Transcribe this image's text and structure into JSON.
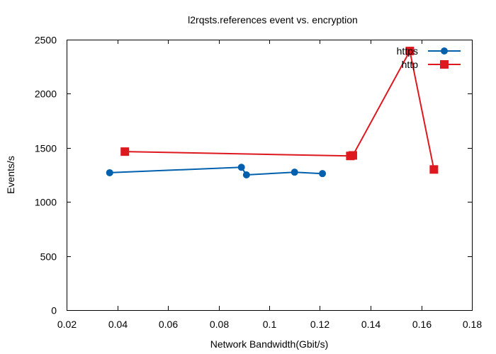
{
  "chart_data": {
    "type": "line",
    "title": "l2rqsts.references event vs. encryption",
    "xlabel": "Network Bandwidth(Gbit/s)",
    "ylabel": "Events/s",
    "xlim": [
      0.02,
      0.18
    ],
    "ylim": [
      0,
      2500
    ],
    "xticks": [
      0.02,
      0.04,
      0.06,
      0.08,
      0.1,
      0.12,
      0.14,
      0.16,
      0.18
    ],
    "xtick_labels": [
      "0.02",
      "0.04",
      "0.06",
      "0.08",
      "0.1",
      "0.12",
      "0.14",
      "0.16",
      "0.18"
    ],
    "yticks": [
      0,
      500,
      1000,
      1500,
      2000,
      2500
    ],
    "ytick_labels": [
      "0",
      "500",
      "1000",
      "1500",
      "2000",
      "2500"
    ],
    "grid": false,
    "legend_position": "top-right",
    "series": [
      {
        "name": "https",
        "color": "#0060ad",
        "marker": "circle",
        "points": [
          [
            0.037,
            1270
          ],
          [
            0.089,
            1320
          ],
          [
            0.091,
            1250
          ],
          [
            0.11,
            1275
          ],
          [
            0.121,
            1262
          ]
        ]
      },
      {
        "name": "http",
        "color": "#dd181f",
        "marker": "square",
        "points": [
          [
            0.043,
            1465
          ],
          [
            0.132,
            1425
          ],
          [
            0.133,
            1430
          ],
          [
            0.1555,
            2395
          ],
          [
            0.165,
            1300
          ]
        ]
      }
    ]
  }
}
